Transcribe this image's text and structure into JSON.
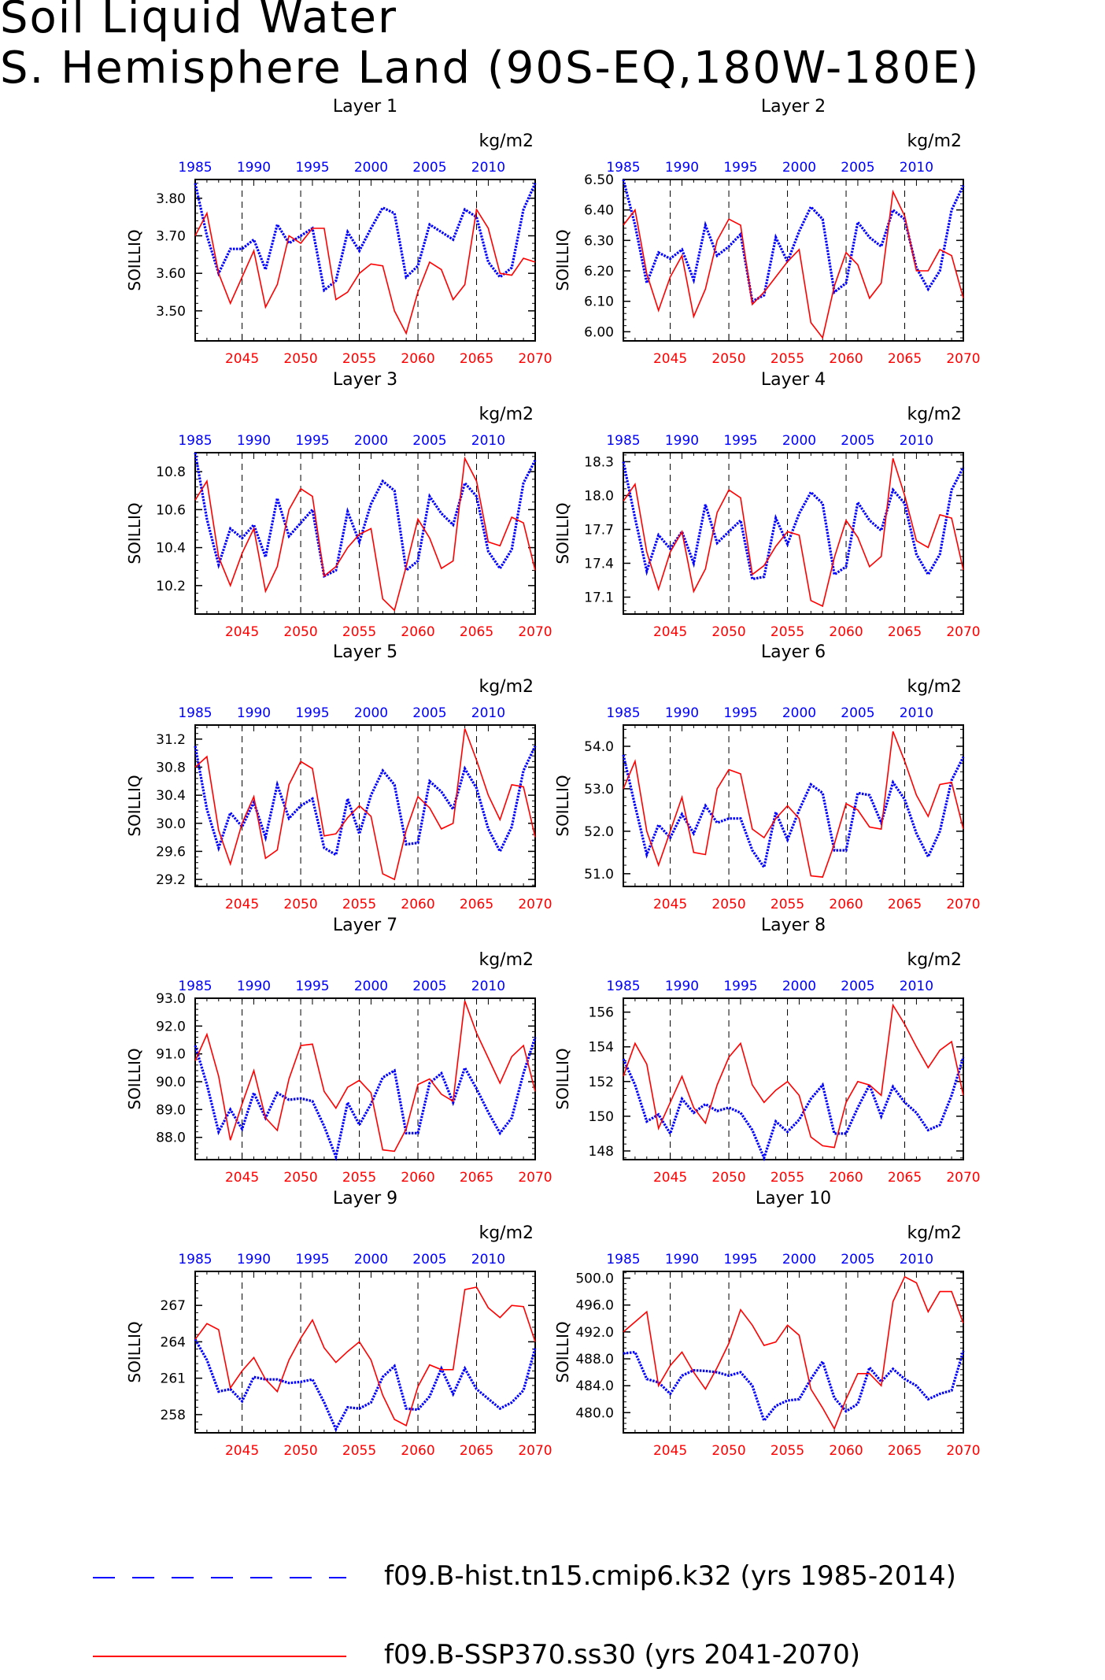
{
  "title": "Soil Liquid Water",
  "subtitle": "S. Hemisphere Land (90S-EQ,180W-180E)",
  "units": "kg/m2",
  "ylabel": "SOILLIQ",
  "colors": {
    "hist": "#0000ff",
    "ssp": "#ff0000",
    "grid": "#000000"
  },
  "hist_axis": {
    "ticks": [
      "1985",
      "1990",
      "1995",
      "2000",
      "2005",
      "2010"
    ]
  },
  "ssp_axis": {
    "ticks": [
      "2045",
      "2050",
      "2055",
      "2060",
      "2065",
      "2070"
    ]
  },
  "legend": [
    {
      "label": "f09.B-hist.tn15.cmip6.k32 (yrs 1985-2014)",
      "color": "#0000ff",
      "style": "dashed"
    },
    {
      "label": "f09.B-SSP370.ss30 (yrs 2041-2070)",
      "color": "#ff0000",
      "style": "solid"
    }
  ],
  "chart_data": [
    {
      "type": "line",
      "title": "Layer 1",
      "ylim": [
        3.42,
        3.85
      ],
      "yticks": [
        "3.50",
        "3.60",
        "3.70",
        "3.80"
      ],
      "ytick_values": [
        3.5,
        3.6,
        3.7,
        3.8
      ],
      "series": [
        {
          "name": "f09.B-hist.tn15.cmip6.k32 (yrs 1985-2014)",
          "x_start": 1985,
          "values": [
            3.84,
            3.7,
            3.6,
            3.665,
            3.665,
            3.69,
            3.61,
            3.73,
            3.68,
            3.7,
            3.72,
            3.555,
            3.58,
            3.71,
            3.66,
            3.72,
            3.775,
            3.76,
            3.59,
            3.62,
            3.73,
            3.71,
            3.69,
            3.77,
            3.75,
            3.63,
            3.59,
            3.615,
            3.77,
            3.84
          ]
        },
        {
          "name": "f09.B-SSP370.ss30 (yrs 2041-2070)",
          "x_start": 2041,
          "values": [
            3.7,
            3.76,
            3.6,
            3.52,
            3.59,
            3.66,
            3.51,
            3.57,
            3.7,
            3.68,
            3.72,
            3.72,
            3.53,
            3.55,
            3.6,
            3.625,
            3.62,
            3.5,
            3.44,
            3.55,
            3.63,
            3.61,
            3.53,
            3.57,
            3.77,
            3.72,
            3.6,
            3.595,
            3.64,
            3.63
          ]
        }
      ]
    },
    {
      "type": "line",
      "title": "Layer 2",
      "ylim": [
        5.97,
        6.5
      ],
      "yticks": [
        "6.00",
        "6.10",
        "6.20",
        "6.30",
        "6.40",
        "6.50"
      ],
      "ytick_values": [
        6.0,
        6.1,
        6.2,
        6.3,
        6.4,
        6.5
      ],
      "series": [
        {
          "name": "f09.B-hist.tn15.cmip6.k32 (yrs 1985-2014)",
          "x_start": 1985,
          "values": [
            6.5,
            6.35,
            6.16,
            6.26,
            6.24,
            6.27,
            6.17,
            6.35,
            6.25,
            6.28,
            6.32,
            6.1,
            6.12,
            6.31,
            6.23,
            6.33,
            6.41,
            6.37,
            6.13,
            6.16,
            6.36,
            6.31,
            6.28,
            6.4,
            6.37,
            6.21,
            6.14,
            6.2,
            6.4,
            6.48
          ]
        },
        {
          "name": "f09.B-SSP370.ss30 (yrs 2041-2070)",
          "x_start": 2041,
          "values": [
            6.35,
            6.4,
            6.19,
            6.07,
            6.18,
            6.25,
            6.05,
            6.14,
            6.3,
            6.37,
            6.35,
            6.09,
            6.13,
            6.18,
            6.23,
            6.27,
            6.03,
            5.98,
            6.15,
            6.26,
            6.22,
            6.11,
            6.16,
            6.46,
            6.38,
            6.2,
            6.2,
            6.27,
            6.25,
            6.11
          ]
        }
      ]
    },
    {
      "type": "line",
      "title": "Layer 3",
      "ylim": [
        10.05,
        10.9
      ],
      "yticks": [
        "10.2",
        "10.4",
        "10.6",
        "10.8"
      ],
      "ytick_values": [
        10.2,
        10.4,
        10.6,
        10.8
      ],
      "series": [
        {
          "name": "f09.B-hist.tn15.cmip6.k32 (yrs 1985-2014)",
          "x_start": 1985,
          "values": [
            10.9,
            10.55,
            10.31,
            10.5,
            10.45,
            10.52,
            10.35,
            10.66,
            10.46,
            10.53,
            10.6,
            10.25,
            10.28,
            10.59,
            10.43,
            10.63,
            10.75,
            10.7,
            10.28,
            10.33,
            10.67,
            10.58,
            10.52,
            10.74,
            10.67,
            10.38,
            10.29,
            10.39,
            10.74,
            10.86
          ]
        },
        {
          "name": "f09.B-SSP370.ss30 (yrs 2041-2070)",
          "x_start": 2041,
          "values": [
            10.65,
            10.75,
            10.35,
            10.2,
            10.37,
            10.5,
            10.17,
            10.3,
            10.6,
            10.71,
            10.67,
            10.25,
            10.3,
            10.4,
            10.47,
            10.5,
            10.13,
            10.07,
            10.3,
            10.55,
            10.45,
            10.29,
            10.33,
            10.87,
            10.75,
            10.43,
            10.41,
            10.56,
            10.53,
            10.28
          ]
        }
      ]
    },
    {
      "type": "line",
      "title": "Layer 4",
      "ylim": [
        16.95,
        18.38
      ],
      "yticks": [
        "17.1",
        "17.4",
        "17.7",
        "18.0",
        "18.3"
      ],
      "ytick_values": [
        17.1,
        17.4,
        17.7,
        18.0,
        18.3
      ],
      "series": [
        {
          "name": "f09.B-hist.tn15.cmip6.k32 (yrs 1985-2014)",
          "x_start": 1985,
          "values": [
            18.3,
            17.8,
            17.33,
            17.65,
            17.53,
            17.68,
            17.4,
            17.92,
            17.58,
            17.68,
            17.78,
            17.26,
            17.28,
            17.8,
            17.57,
            17.84,
            18.03,
            17.93,
            17.3,
            17.37,
            17.94,
            17.78,
            17.69,
            18.05,
            17.93,
            17.48,
            17.3,
            17.48,
            18.05,
            18.25
          ]
        },
        {
          "name": "f09.B-SSP370.ss30 (yrs 2041-2070)",
          "x_start": 2041,
          "values": [
            17.95,
            18.1,
            17.5,
            17.17,
            17.5,
            17.68,
            17.15,
            17.35,
            17.85,
            18.05,
            17.98,
            17.3,
            17.38,
            17.55,
            17.68,
            17.65,
            17.07,
            17.02,
            17.45,
            17.78,
            17.63,
            17.37,
            17.46,
            18.33,
            18.0,
            17.6,
            17.54,
            17.83,
            17.8,
            17.34
          ]
        }
      ]
    },
    {
      "type": "line",
      "title": "Layer 5",
      "ylim": [
        29.1,
        31.4
      ],
      "yticks": [
        "29.2",
        "29.6",
        "30.0",
        "30.4",
        "30.8",
        "31.2"
      ],
      "ytick_values": [
        29.2,
        29.6,
        30.0,
        30.4,
        30.8,
        31.2
      ],
      "series": [
        {
          "name": "f09.B-hist.tn15.cmip6.k32 (yrs 1985-2014)",
          "x_start": 1985,
          "values": [
            31.1,
            30.2,
            29.65,
            30.15,
            29.95,
            30.3,
            29.8,
            30.55,
            30.07,
            30.25,
            30.35,
            29.65,
            29.55,
            30.35,
            29.85,
            30.4,
            30.75,
            30.55,
            29.7,
            29.72,
            30.6,
            30.45,
            30.2,
            30.78,
            30.5,
            29.92,
            29.6,
            29.95,
            30.75,
            31.1
          ]
        },
        {
          "name": "f09.B-SSP370.ss30 (yrs 2041-2070)",
          "x_start": 2041,
          "values": [
            30.8,
            30.95,
            29.9,
            29.42,
            30.0,
            30.38,
            29.5,
            29.62,
            30.55,
            30.88,
            30.78,
            29.82,
            29.85,
            30.08,
            30.25,
            30.1,
            29.28,
            29.2,
            29.9,
            30.38,
            30.22,
            29.92,
            30.0,
            31.35,
            30.9,
            30.4,
            30.05,
            30.55,
            30.52,
            29.8
          ]
        }
      ]
    },
    {
      "type": "line",
      "title": "Layer 6",
      "ylim": [
        50.7,
        54.5
      ],
      "yticks": [
        "51.0",
        "52.0",
        "53.0",
        "54.0"
      ],
      "ytick_values": [
        51.0,
        52.0,
        53.0,
        54.0
      ],
      "series": [
        {
          "name": "f09.B-hist.tn15.cmip6.k32 (yrs 1985-2014)",
          "x_start": 1985,
          "values": [
            53.8,
            52.6,
            51.45,
            52.15,
            51.85,
            52.4,
            51.95,
            52.6,
            52.2,
            52.3,
            52.3,
            51.55,
            51.15,
            52.45,
            51.8,
            52.5,
            53.1,
            52.9,
            51.55,
            51.55,
            52.9,
            52.85,
            52.2,
            53.15,
            52.75,
            51.95,
            51.4,
            52.0,
            53.2,
            53.75
          ]
        },
        {
          "name": "f09.B-SSP370.ss30 (yrs 2041-2070)",
          "x_start": 2041,
          "values": [
            53.0,
            53.65,
            52.0,
            51.2,
            52.0,
            52.8,
            51.5,
            51.45,
            53.0,
            53.45,
            53.35,
            52.05,
            51.85,
            52.3,
            52.6,
            52.3,
            50.95,
            50.92,
            51.7,
            52.65,
            52.5,
            52.1,
            52.05,
            54.35,
            53.65,
            52.85,
            52.35,
            53.1,
            53.15,
            52.05
          ]
        }
      ]
    },
    {
      "type": "line",
      "title": "Layer 7",
      "ylim": [
        87.2,
        93.0
      ],
      "yticks": [
        "88.0",
        "89.0",
        "90.0",
        "91.0",
        "92.0",
        "93.0"
      ],
      "ytick_values": [
        88.0,
        89.0,
        90.0,
        91.0,
        92.0,
        93.0
      ],
      "series": [
        {
          "name": "f09.B-hist.tn15.cmip6.k32 (yrs 1985-2014)",
          "x_start": 1985,
          "values": [
            91.3,
            89.9,
            88.2,
            89.0,
            88.3,
            89.6,
            88.7,
            89.6,
            89.35,
            89.4,
            89.3,
            88.4,
            87.3,
            89.25,
            88.45,
            89.2,
            90.15,
            90.4,
            88.15,
            88.15,
            89.95,
            90.3,
            89.25,
            90.5,
            89.75,
            88.9,
            88.15,
            88.7,
            90.3,
            91.6
          ]
        },
        {
          "name": "f09.B-SSP370.ss30 (yrs 2041-2070)",
          "x_start": 2041,
          "values": [
            90.75,
            91.7,
            90.2,
            87.9,
            89.2,
            90.4,
            88.7,
            88.25,
            90.1,
            91.3,
            91.35,
            89.65,
            89.05,
            89.8,
            90.05,
            89.6,
            87.55,
            87.5,
            88.3,
            89.9,
            90.1,
            89.55,
            89.3,
            92.9,
            91.75,
            90.85,
            89.95,
            90.9,
            91.3,
            89.65
          ]
        }
      ]
    },
    {
      "type": "line",
      "title": "Layer 8",
      "ylim": [
        147.5,
        156.8
      ],
      "yticks": [
        "148",
        "150",
        "152",
        "154",
        "156"
      ],
      "ytick_values": [
        148,
        150,
        152,
        154,
        156
      ],
      "series": [
        {
          "name": "f09.B-hist.tn15.cmip6.k32 (yrs 1985-2014)",
          "x_start": 1985,
          "values": [
            153.3,
            151.8,
            149.7,
            150.1,
            149.0,
            151.0,
            150.2,
            150.7,
            150.3,
            150.5,
            150.2,
            149.2,
            147.6,
            149.7,
            149.1,
            149.8,
            151.0,
            151.8,
            149.0,
            149.0,
            150.5,
            151.8,
            150.0,
            151.7,
            150.8,
            150.2,
            149.2,
            149.5,
            151.2,
            153.4
          ]
        },
        {
          "name": "f09.B-SSP370.ss30 (yrs 2041-2070)",
          "x_start": 2041,
          "values": [
            152.3,
            154.2,
            153.0,
            149.3,
            150.8,
            152.3,
            150.5,
            149.6,
            151.8,
            153.4,
            154.2,
            151.8,
            150.8,
            151.5,
            152.0,
            151.2,
            148.8,
            148.3,
            148.2,
            150.8,
            152.0,
            151.8,
            151.2,
            156.4,
            155.3,
            154.0,
            152.8,
            153.8,
            154.3,
            151.2
          ]
        }
      ]
    },
    {
      "type": "line",
      "title": "Layer 9",
      "ylim": [
        256.5,
        269.8
      ],
      "yticks": [
        "258",
        "261",
        "264",
        "267"
      ],
      "ytick_values": [
        258,
        261,
        264,
        267
      ],
      "series": [
        {
          "name": "f09.B-hist.tn15.cmip6.k32 (yrs 1985-2014)",
          "x_start": 1985,
          "values": [
            264.2,
            262.5,
            259.9,
            260.1,
            259.1,
            261.1,
            260.9,
            260.9,
            260.6,
            260.7,
            260.9,
            259.0,
            256.8,
            258.6,
            258.5,
            259.0,
            261.1,
            262.0,
            258.5,
            258.4,
            259.5,
            261.8,
            259.7,
            261.8,
            260.1,
            259.3,
            258.5,
            259.0,
            260.0,
            263.5
          ]
        },
        {
          "name": "f09.B-SSP370.ss30 (yrs 2041-2070)",
          "x_start": 2041,
          "values": [
            264.2,
            265.5,
            265.0,
            260.2,
            261.6,
            262.7,
            260.9,
            259.9,
            262.5,
            264.3,
            265.8,
            263.5,
            262.3,
            263.2,
            264.0,
            262.5,
            259.6,
            257.6,
            257.1,
            260.3,
            262.1,
            261.7,
            261.7,
            268.3,
            268.5,
            266.8,
            266.0,
            267.0,
            266.9,
            264.0
          ]
        }
      ]
    },
    {
      "type": "line",
      "title": "Layer 10",
      "ylim": [
        477.0,
        501.0
      ],
      "yticks": [
        "480.0",
        "484.0",
        "488.0",
        "492.0",
        "496.0",
        "500.0"
      ],
      "ytick_values": [
        480.0,
        484.0,
        488.0,
        492.0,
        496.0,
        500.0
      ],
      "series": [
        {
          "name": "f09.B-hist.tn15.cmip6.k32 (yrs 1985-2014)",
          "x_start": 1985,
          "values": [
            488.8,
            489.0,
            485.0,
            484.5,
            482.8,
            485.5,
            486.3,
            486.2,
            486.0,
            485.5,
            486.0,
            484.0,
            478.8,
            481.0,
            481.8,
            482.0,
            485.0,
            487.6,
            482.2,
            480.2,
            481.3,
            486.7,
            484.6,
            486.5,
            485.0,
            484.0,
            482.0,
            482.8,
            483.3,
            489.2
          ]
        },
        {
          "name": "f09.B-SSP370.ss30 (yrs 2041-2070)",
          "x_start": 2041,
          "values": [
            492.0,
            493.5,
            495.0,
            484.0,
            487.0,
            489.0,
            486.0,
            483.5,
            486.7,
            490.3,
            495.3,
            493.0,
            490.0,
            490.5,
            493.0,
            491.5,
            483.5,
            480.7,
            477.6,
            482.0,
            485.8,
            485.8,
            484.0,
            496.5,
            500.2,
            499.3,
            495.0,
            498.0,
            498.0,
            493.3
          ]
        }
      ]
    }
  ]
}
